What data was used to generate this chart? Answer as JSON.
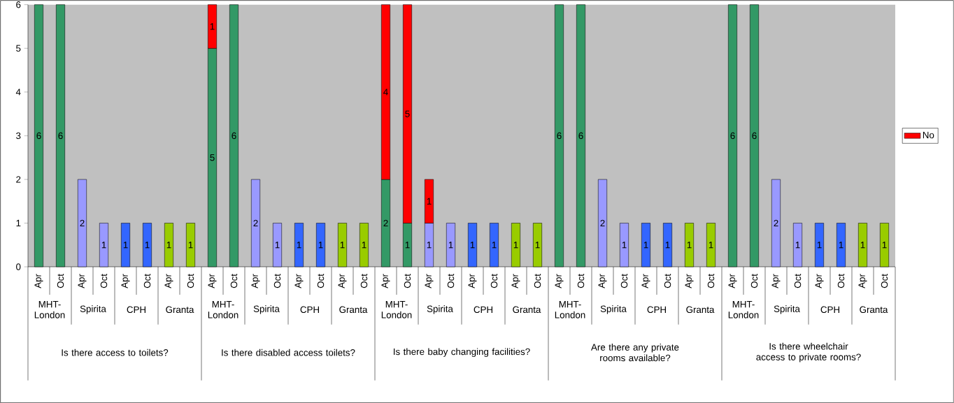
{
  "chart_data": {
    "type": "bar",
    "stacked": true,
    "data_labels": true,
    "legend": "right",
    "categories": [
      "Apr",
      "Oct",
      "Apr",
      "Oct",
      "Apr",
      "Oct",
      "Apr",
      "Oct",
      "Apr",
      "Oct",
      "Apr",
      "Oct",
      "Apr",
      "Oct",
      "Apr",
      "Oct",
      "Apr",
      "Oct",
      "Apr",
      "Oct",
      "Apr",
      "Oct",
      "Apr",
      "Oct",
      "Apr",
      "Oct",
      "Apr",
      "Oct",
      "Apr",
      "Oct",
      "Apr",
      "Oct",
      "Apr",
      "Oct",
      "Apr",
      "Oct",
      "Apr",
      "Oct",
      "Apr",
      "Oct"
    ],
    "series": [
      {
        "colors": [
          "#339966",
          "#339966",
          "#9999ff",
          "#9999ff",
          "#3366ff",
          "#3366ff",
          "#99cc00",
          "#99cc00",
          "#339966",
          "#339966",
          "#9999ff",
          "#9999ff",
          "#3366ff",
          "#3366ff",
          "#99cc00",
          "#99cc00",
          "#339966",
          "#339966",
          "#9999ff",
          "#9999ff",
          "#3366ff",
          "#3366ff",
          "#99cc00",
          "#99cc00",
          "#339966",
          "#339966",
          "#9999ff",
          "#9999ff",
          "#3366ff",
          "#3366ff",
          "#99cc00",
          "#99cc00",
          "#339966",
          "#339966",
          "#9999ff",
          "#9999ff",
          "#3366ff",
          "#3366ff",
          "#99cc00",
          "#99cc00"
        ],
        "values": [
          6,
          6,
          2,
          1,
          1,
          1,
          1,
          1,
          5,
          6,
          2,
          1,
          1,
          1,
          1,
          1,
          2,
          1,
          1,
          1,
          1,
          1,
          1,
          1,
          6,
          6,
          2,
          1,
          1,
          1,
          1,
          1,
          6,
          6,
          2,
          1,
          1,
          1,
          1,
          1
        ]
      },
      {
        "name": "No",
        "color": "#ff0000",
        "values": [
          null,
          null,
          null,
          null,
          null,
          null,
          null,
          null,
          1,
          null,
          null,
          null,
          null,
          null,
          null,
          null,
          4,
          5,
          1,
          null,
          null,
          null,
          null,
          null,
          null,
          null,
          null,
          null,
          null,
          null,
          null,
          null,
          null,
          null,
          null,
          null,
          null,
          null,
          null,
          null
        ]
      }
    ],
    "ylim": [
      0,
      6
    ],
    "yticks": [
      0,
      1,
      2,
      3,
      4,
      5,
      6
    ],
    "annotations": [
      "MHT-London",
      "Spirita",
      "CPH",
      "Granta",
      "MHT-London",
      "Spirita",
      "CPH",
      "Granta",
      "MHT-London",
      "Spirita",
      "CPH",
      "Granta",
      "MHT-London",
      "Spirita",
      "CPH",
      "Granta",
      "MHT-London",
      "Spirita",
      "CPH",
      "Granta",
      "Is there access to toilets?",
      "Is there disabled access toilets?",
      "Is there baby changing facilities?",
      "Are there any private rooms available?",
      "Is there wheelchair access to private rooms?"
    ]
  }
}
